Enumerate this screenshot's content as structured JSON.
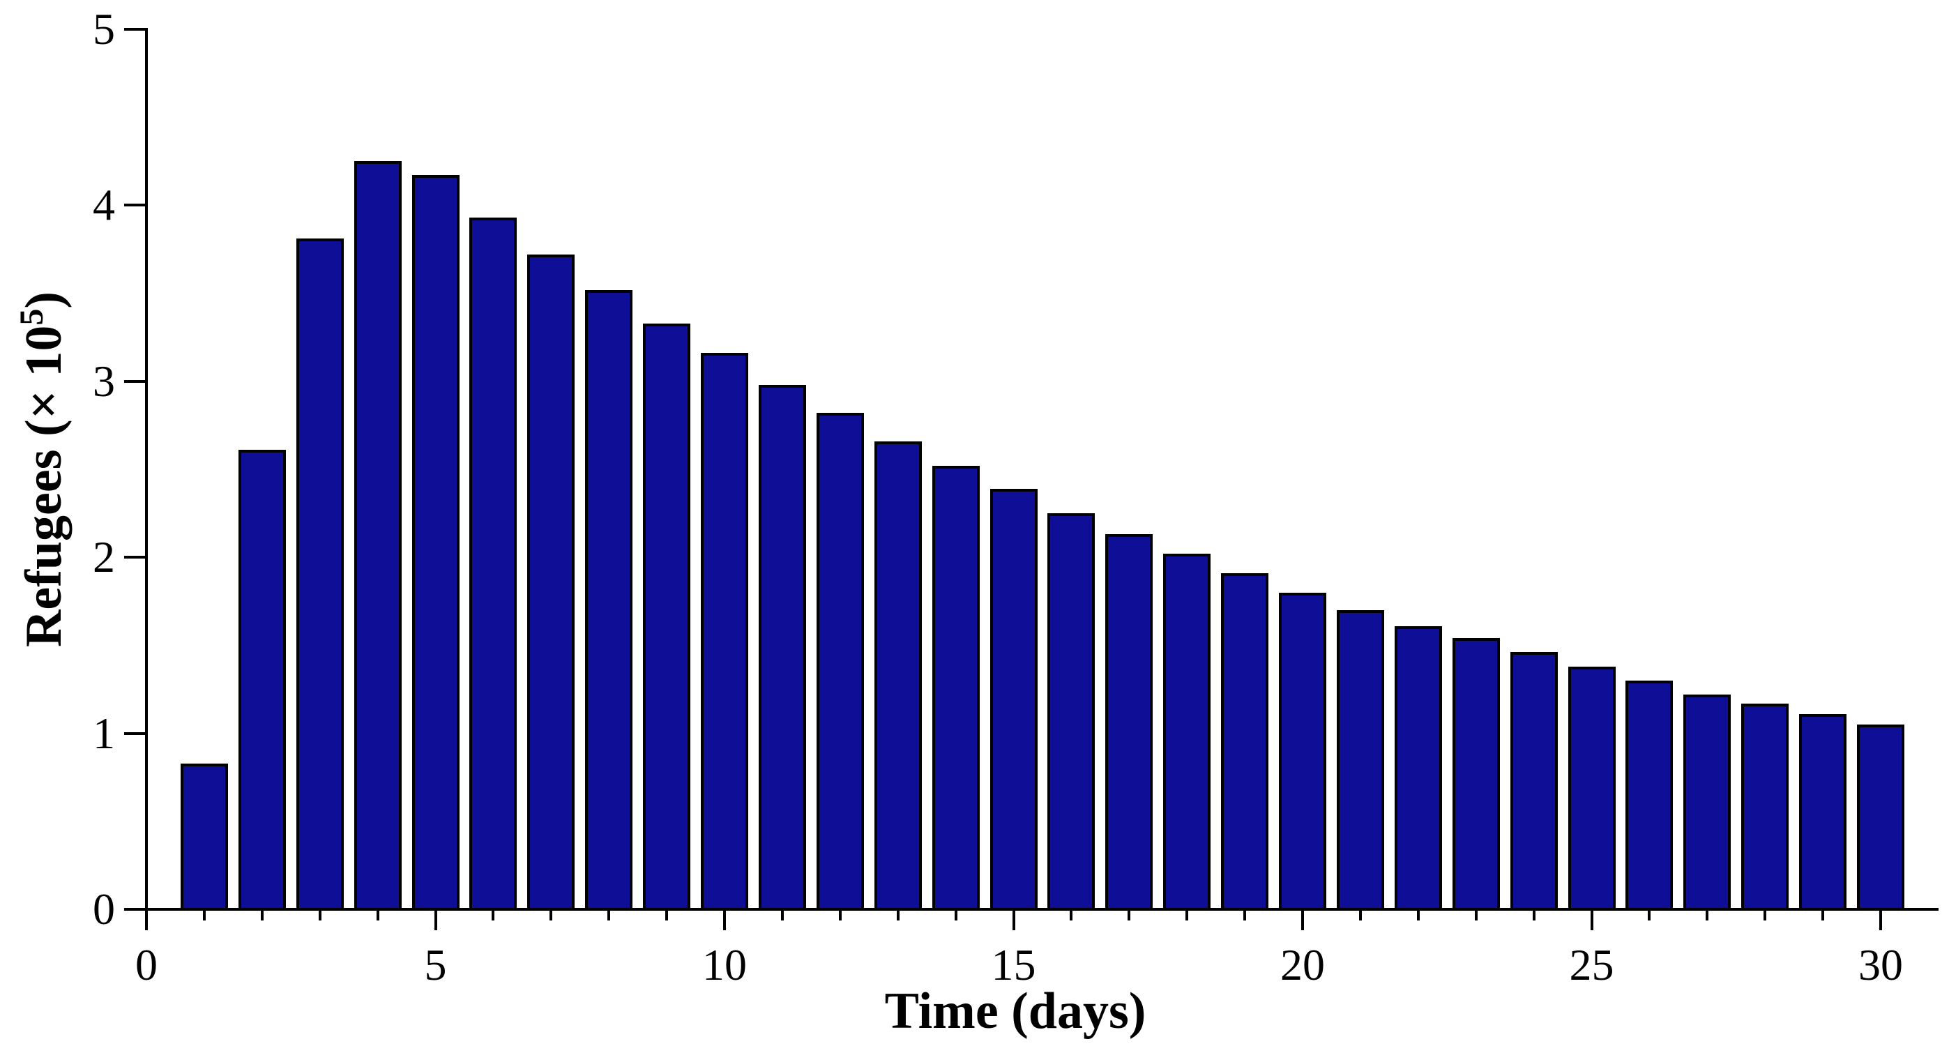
{
  "chart_data": {
    "type": "bar",
    "title": "",
    "xlabel": "Time (days)",
    "ylabel_main": "Refugees (× 10",
    "ylabel_sup": "5",
    "ylabel_close": ")",
    "categories": [
      1,
      2,
      3,
      4,
      5,
      6,
      7,
      8,
      9,
      10,
      11,
      12,
      13,
      14,
      15,
      16,
      17,
      18,
      19,
      20,
      21,
      22,
      23,
      24,
      25,
      26,
      27,
      28,
      29,
      30
    ],
    "values": [
      0.83,
      2.61,
      3.81,
      4.25,
      4.17,
      3.93,
      3.72,
      3.52,
      3.33,
      3.16,
      2.98,
      2.82,
      2.66,
      2.52,
      2.39,
      2.25,
      2.13,
      2.02,
      1.91,
      1.8,
      1.7,
      1.61,
      1.54,
      1.46,
      1.38,
      1.3,
      1.22,
      1.17,
      1.11,
      1.05
    ],
    "xlim": [
      0,
      31
    ],
    "ylim": [
      0,
      5
    ],
    "x_major_ticks": [
      0,
      5,
      10,
      15,
      20,
      25,
      30
    ],
    "x_minor_tick_step": 1,
    "y_ticks": [
      0,
      1,
      2,
      3,
      4,
      5
    ],
    "grid": "off",
    "legend": "none",
    "bar_fill_color": "#0e0e96",
    "bar_edge_color": "#000000",
    "axis_color": "#000000",
    "background_color": "#ffffff"
  }
}
